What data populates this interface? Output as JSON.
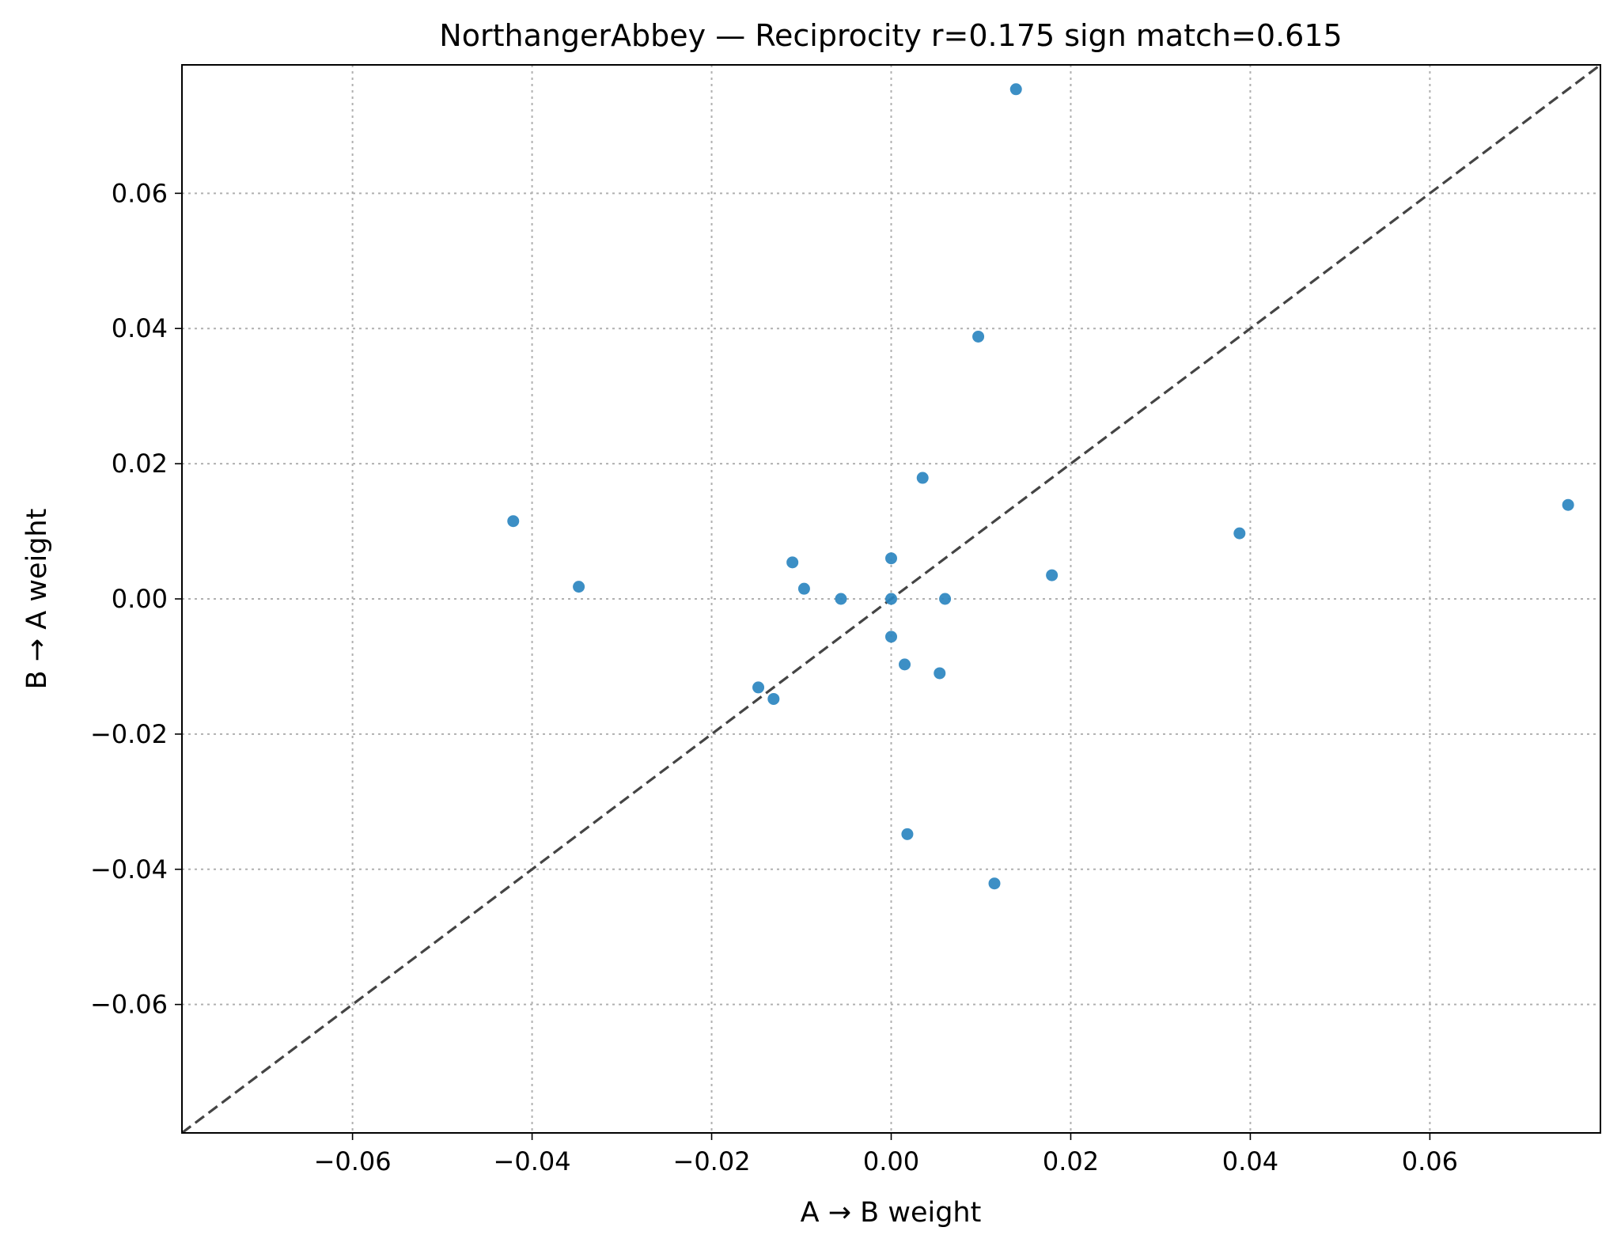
{
  "chart_data": {
    "type": "scatter",
    "title": "NorthangerAbbey — Reciprocity r=0.175  sign match=0.615",
    "xlabel": "A → B weight",
    "ylabel": "B → A weight",
    "xlim": [
      -0.079,
      0.079
    ],
    "ylim": [
      -0.079,
      0.079
    ],
    "xticks": [
      -0.06,
      -0.04,
      -0.02,
      0.0,
      0.02,
      0.04,
      0.06
    ],
    "yticks": [
      -0.06,
      -0.04,
      -0.02,
      0.0,
      0.02,
      0.04,
      0.06
    ],
    "xtick_labels": [
      "−0.06",
      "−0.04",
      "−0.02",
      "0.00",
      "0.02",
      "0.04",
      "0.06"
    ],
    "ytick_labels": [
      "−0.06",
      "−0.04",
      "−0.02",
      "0.00",
      "0.02",
      "0.04",
      "0.06"
    ],
    "grid": true,
    "reference_line": "y = x",
    "marker_color": "#2b86c0",
    "reference_color": "#444444",
    "points": [
      {
        "x": 0.0139,
        "y": 0.0754
      },
      {
        "x": 0.0097,
        "y": 0.0388
      },
      {
        "x": 0.0035,
        "y": 0.0179
      },
      {
        "x": -0.0421,
        "y": 0.0115
      },
      {
        "x": 0.0754,
        "y": 0.0139
      },
      {
        "x": 0.0388,
        "y": 0.0097
      },
      {
        "x": -0.011,
        "y": 0.0054
      },
      {
        "x": 0.0,
        "y": 0.006
      },
      {
        "x": -0.0348,
        "y": 0.0018
      },
      {
        "x": -0.0097,
        "y": 0.0015
      },
      {
        "x": 0.0179,
        "y": 0.0035
      },
      {
        "x": -0.0056,
        "y": 0.0
      },
      {
        "x": 0.0,
        "y": 0.0
      },
      {
        "x": 0.006,
        "y": 0.0
      },
      {
        "x": 0.0,
        "y": -0.0056
      },
      {
        "x": 0.0015,
        "y": -0.0097
      },
      {
        "x": 0.0054,
        "y": -0.011
      },
      {
        "x": -0.0148,
        "y": -0.0131
      },
      {
        "x": -0.0131,
        "y": -0.0148
      },
      {
        "x": 0.0018,
        "y": -0.0348
      },
      {
        "x": 0.0115,
        "y": -0.0421
      }
    ]
  }
}
